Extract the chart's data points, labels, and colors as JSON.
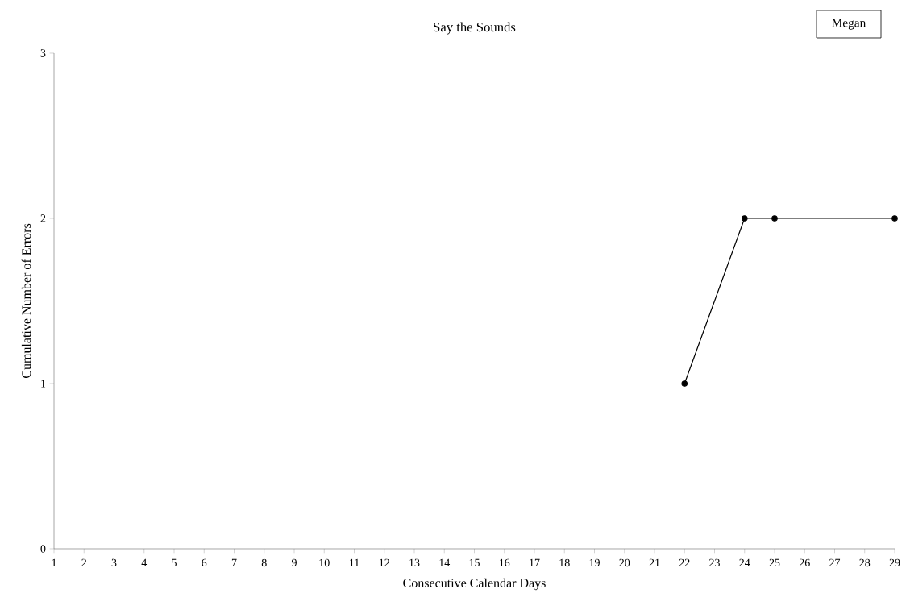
{
  "chart_data": {
    "type": "line",
    "title": "Say the Sounds",
    "xlabel": "Consecutive Calendar Days",
    "ylabel": "Cumulative Number of Errors",
    "annotations": [
      "Megan"
    ],
    "x": [
      22,
      24,
      25,
      29
    ],
    "values": [
      1,
      2,
      2,
      2
    ],
    "color": "#000000",
    "marker": "circle",
    "line_style": "solid",
    "xlim": [
      1,
      29
    ],
    "xticks": [
      1,
      2,
      3,
      4,
      5,
      6,
      7,
      8,
      9,
      10,
      11,
      12,
      13,
      14,
      15,
      16,
      17,
      18,
      19,
      20,
      21,
      22,
      23,
      24,
      25,
      26,
      27,
      28,
      29
    ],
    "ylim": [
      0,
      3
    ],
    "yticks": [
      0,
      1,
      2,
      3
    ]
  }
}
